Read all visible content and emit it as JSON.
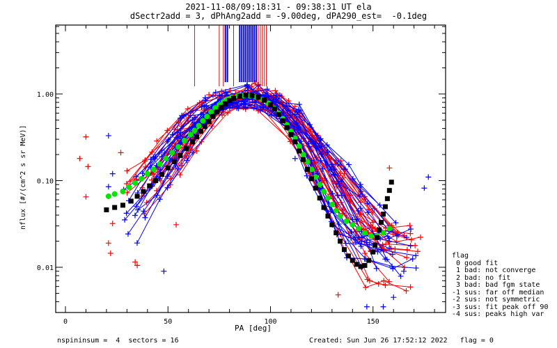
{
  "header": {
    "title_line1": "2021-11-08/09:18:31 - 09:38:31 UT ela",
    "title_line2": "dSectr2add = 3, dPhAng2add = -9.00deg, dPA290_est=  -0.1deg"
  },
  "footer": {
    "left": "nspininsum =  4  sectors = 16",
    "right": "Created: Sun Jun 26 17:52:12 2022   flag = 0"
  },
  "legend": {
    "title": "flag",
    "items": [
      " 0 good fit",
      " 1 bad: not converge",
      " 2 bad: no fit",
      " 3 bad: bad fgm state",
      "-1 sus: far off median",
      "-2 sus: not symmetric",
      "-3 sus: fit peak off 90",
      "-4 sus: peaks high var"
    ]
  },
  "colors": {
    "red": "#ff0000",
    "blue": "#0000ff",
    "green": "#00e600",
    "black": "#000000"
  },
  "chart_data": {
    "type": "line",
    "title": "2021-11-08/09:18:31 - 09:38:31 UT ela",
    "subtitle": "dSectr2add = 3, dPhAng2add = -9.00deg, dPA290_est=  -0.1deg",
    "xlabel": "PA [deg]",
    "ylabel": "nflux [#/(cm^2 s sr MeV)]",
    "xlim": [
      -4.8,
      185
    ],
    "ylim": [
      0.003,
      6.2
    ],
    "yscale": "log",
    "xticks": [
      0,
      50,
      100,
      150
    ],
    "xtick_labels": [
      "0",
      "50",
      "100",
      "150"
    ],
    "yticks": [
      0.01,
      0.1,
      1.0
    ],
    "ytick_labels": [
      "0.01",
      "0.10",
      "1.00"
    ],
    "grid": false,
    "legend_position": "right-bottom-outside",
    "series": [
      {
        "name": "median-fit-green",
        "color": "green",
        "style": "dots",
        "x": [
          21,
          24,
          28,
          31,
          34,
          37,
          40,
          43,
          46,
          49,
          52,
          55,
          58,
          61,
          63,
          65,
          67,
          69,
          71,
          73,
          75,
          77,
          79,
          81,
          84,
          87,
          90,
          93,
          96,
          99,
          102,
          104,
          106,
          108,
          110,
          112,
          114,
          116,
          118,
          120,
          122,
          124,
          126,
          128,
          130,
          132,
          134,
          137,
          140,
          143,
          146,
          149,
          152,
          155,
          158
        ],
        "y": [
          0.066,
          0.07,
          0.075,
          0.084,
          0.094,
          0.105,
          0.12,
          0.135,
          0.155,
          0.18,
          0.21,
          0.245,
          0.29,
          0.34,
          0.38,
          0.43,
          0.49,
          0.55,
          0.62,
          0.69,
          0.75,
          0.81,
          0.87,
          0.91,
          0.95,
          0.96,
          0.95,
          0.92,
          0.86,
          0.78,
          0.68,
          0.6,
          0.52,
          0.44,
          0.37,
          0.31,
          0.25,
          0.2,
          0.165,
          0.135,
          0.11,
          0.09,
          0.075,
          0.063,
          0.053,
          0.045,
          0.039,
          0.034,
          0.031,
          0.028,
          0.025,
          0.023,
          0.023,
          0.025,
          0.028
        ]
      },
      {
        "name": "median-fit-black",
        "color": "black",
        "style": "dots",
        "x": [
          20,
          24,
          28,
          32,
          35,
          38,
          41,
          44,
          47,
          50,
          53,
          56,
          59,
          62,
          64,
          66,
          68,
          70,
          72,
          74,
          76,
          78,
          80,
          82,
          85,
          88,
          91,
          94,
          97,
          100,
          102,
          104,
          106,
          108,
          110,
          112,
          114,
          116,
          118,
          120,
          122,
          124,
          126,
          128,
          130,
          132,
          134,
          136,
          138,
          140,
          142,
          144,
          146,
          148,
          150,
          151,
          152,
          153,
          154,
          155,
          156,
          157,
          158,
          159
        ],
        "y": [
          0.046,
          0.049,
          0.052,
          0.058,
          0.066,
          0.075,
          0.087,
          0.1,
          0.118,
          0.14,
          0.165,
          0.195,
          0.235,
          0.28,
          0.32,
          0.37,
          0.42,
          0.48,
          0.55,
          0.62,
          0.7,
          0.77,
          0.84,
          0.89,
          0.94,
          0.97,
          0.96,
          0.92,
          0.85,
          0.75,
          0.67,
          0.58,
          0.49,
          0.41,
          0.34,
          0.28,
          0.22,
          0.175,
          0.135,
          0.105,
          0.082,
          0.063,
          0.049,
          0.039,
          0.031,
          0.025,
          0.02,
          0.016,
          0.0135,
          0.012,
          0.0108,
          0.0102,
          0.0105,
          0.012,
          0.015,
          0.018,
          0.022,
          0.027,
          0.033,
          0.041,
          0.05,
          0.062,
          0.077,
          0.096
        ]
      }
    ],
    "scatter_red_plus_sample": [
      {
        "x": 7,
        "y": 0.18
      },
      {
        "x": 10,
        "y": 0.32
      },
      {
        "x": 11,
        "y": 0.145
      },
      {
        "x": 10,
        "y": 0.065
      },
      {
        "x": 27,
        "y": 0.21
      },
      {
        "x": 64,
        "y": 0.22
      },
      {
        "x": 23,
        "y": 0.032
      },
      {
        "x": 21,
        "y": 0.019
      },
      {
        "x": 22,
        "y": 0.0145
      },
      {
        "x": 34,
        "y": 0.0115
      },
      {
        "x": 35,
        "y": 0.0105
      },
      {
        "x": 54,
        "y": 0.031
      },
      {
        "x": 70,
        "y": 0.98
      },
      {
        "x": 90,
        "y": 1.08
      },
      {
        "x": 112,
        "y": 0.72
      },
      {
        "x": 113,
        "y": 0.34
      },
      {
        "x": 135,
        "y": 0.09
      },
      {
        "x": 136,
        "y": 0.12
      },
      {
        "x": 158,
        "y": 0.14
      },
      {
        "x": 133,
        "y": 0.0048
      }
    ],
    "scatter_blue_plus_sample": [
      {
        "x": 21,
        "y": 0.33
      },
      {
        "x": 23,
        "y": 0.12
      },
      {
        "x": 21,
        "y": 0.085
      },
      {
        "x": 52,
        "y": 0.175
      },
      {
        "x": 66,
        "y": 0.58
      },
      {
        "x": 48,
        "y": 0.009
      },
      {
        "x": 175,
        "y": 0.082
      },
      {
        "x": 177,
        "y": 0.11
      },
      {
        "x": 123,
        "y": 0.12
      },
      {
        "x": 112,
        "y": 0.18
      },
      {
        "x": 142,
        "y": 0.034
      },
      {
        "x": 165,
        "y": 0.009
      },
      {
        "x": 160,
        "y": 0.0045
      },
      {
        "x": 147,
        "y": 0.0035
      },
      {
        "x": 155,
        "y": 0.0035
      }
    ],
    "vertical_lines": [
      {
        "color": "red",
        "x": [
          63,
          75,
          77,
          82,
          94,
          95,
          96,
          97,
          98
        ]
      },
      {
        "color": "blue",
        "x": [
          78,
          79,
          85,
          86,
          87,
          88,
          89,
          90,
          91,
          92,
          93
        ]
      }
    ],
    "note": "Approx. 50+ individual red and blue sector traces with + markers converge near PA~90 at ~1.0 and fall off to ~0.005-0.1 at the PA extremes."
  }
}
